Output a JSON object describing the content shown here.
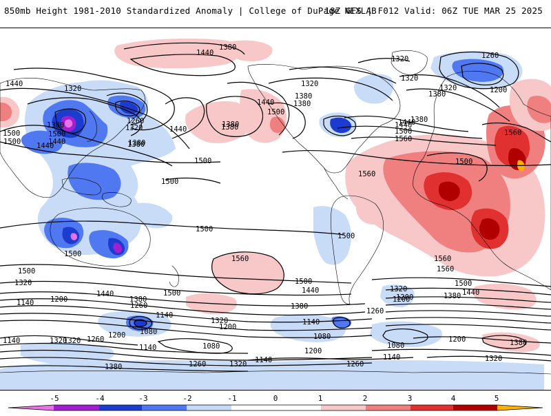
{
  "header": {
    "title": "850mb Height 1981-2010 Standardized Anomaly | College of DuPage NEXLAB",
    "run_info": "18Z GFS | F012 Valid: 06Z TUE MAR 25 2025"
  },
  "colors": {
    "neg5": "#e870e8",
    "neg4": "#a020d0",
    "neg3": "#1c3cd0",
    "neg2": "#5078f0",
    "neg1": "#c8dcf8",
    "zero": "#ffffff",
    "pos1": "#f8c8c8",
    "pos2": "#f08080",
    "pos3": "#e03030",
    "pos4": "#b00000",
    "pos5": "#ffb000",
    "contour": "#000000",
    "coast": "#000000"
  },
  "colorbar": {
    "ticks": [
      "-5",
      "-4",
      "-3",
      "-2",
      "-1",
      "0",
      "1",
      "2",
      "3",
      "4",
      "5"
    ]
  },
  "contour_labels": [
    {
      "id": "l1",
      "text": "1380"
    },
    {
      "id": "l2",
      "text": "1440"
    },
    {
      "id": "l3",
      "text": "1320"
    },
    {
      "id": "l4",
      "text": "1260"
    },
    {
      "id": "l5",
      "text": "1440"
    },
    {
      "id": "l6",
      "text": "1320"
    },
    {
      "id": "l7",
      "text": "1200"
    },
    {
      "id": "l8",
      "text": "1380"
    },
    {
      "id": "l9",
      "text": "1440"
    },
    {
      "id": "l10",
      "text": "1320"
    },
    {
      "id": "l11",
      "text": "1260"
    },
    {
      "id": "l12",
      "text": "1320"
    },
    {
      "id": "l13",
      "text": "1380"
    },
    {
      "id": "l14",
      "text": "1440"
    },
    {
      "id": "l15",
      "text": "1500"
    },
    {
      "id": "l16",
      "text": "1380"
    },
    {
      "id": "l17",
      "text": "1500"
    },
    {
      "id": "l18",
      "text": "1440"
    },
    {
      "id": "l19",
      "text": "1380"
    },
    {
      "id": "l20",
      "text": "1320"
    },
    {
      "id": "l21",
      "text": "1440"
    },
    {
      "id": "l22",
      "text": "1500"
    },
    {
      "id": "l23",
      "text": "1560"
    },
    {
      "id": "l24",
      "text": "1380"
    },
    {
      "id": "l25",
      "text": "1560"
    },
    {
      "id": "l26",
      "text": "1560"
    },
    {
      "id": "l27",
      "text": "1500"
    },
    {
      "id": "l28",
      "text": "1500"
    },
    {
      "id": "l29",
      "text": "1500"
    },
    {
      "id": "l30",
      "text": "1500"
    },
    {
      "id": "l31",
      "text": "1500"
    },
    {
      "id": "l32",
      "text": "1500"
    },
    {
      "id": "l33",
      "text": "1500"
    },
    {
      "id": "l34",
      "text": "1560"
    },
    {
      "id": "l35",
      "text": "1500"
    },
    {
      "id": "l36",
      "text": "1440"
    },
    {
      "id": "l37",
      "text": "1380"
    },
    {
      "id": "l38",
      "text": "1560"
    },
    {
      "id": "l39",
      "text": "1500"
    },
    {
      "id": "l40",
      "text": "1380"
    },
    {
      "id": "l41",
      "text": "1440"
    },
    {
      "id": "l42",
      "text": "1320"
    },
    {
      "id": "l43",
      "text": "1140"
    },
    {
      "id": "l44",
      "text": "1200"
    },
    {
      "id": "l45",
      "text": "1440"
    },
    {
      "id": "l46",
      "text": "1500"
    },
    {
      "id": "l47",
      "text": "1380"
    },
    {
      "id": "l48",
      "text": "1260"
    },
    {
      "id": "l49",
      "text": "1320"
    },
    {
      "id": "l50",
      "text": "1200"
    },
    {
      "id": "l51",
      "text": "1140"
    },
    {
      "id": "l52",
      "text": "1080"
    },
    {
      "id": "l53",
      "text": "1140"
    },
    {
      "id": "l54",
      "text": "1260"
    },
    {
      "id": "l55",
      "text": "1200"
    },
    {
      "id": "l56",
      "text": "1320"
    },
    {
      "id": "l57",
      "text": "1200"
    },
    {
      "id": "l58",
      "text": "1080"
    },
    {
      "id": "l59",
      "text": "1080"
    },
    {
      "id": "l60",
      "text": "1200"
    },
    {
      "id": "l61",
      "text": "1140"
    },
    {
      "id": "l62",
      "text": "1380"
    },
    {
      "id": "l63",
      "text": "1260"
    },
    {
      "id": "l64",
      "text": "1320"
    },
    {
      "id": "l65",
      "text": "1140"
    },
    {
      "id": "l66",
      "text": "1260"
    },
    {
      "id": "l67",
      "text": "1200"
    },
    {
      "id": "l68",
      "text": "1320"
    },
    {
      "id": "l69",
      "text": "1380"
    },
    {
      "id": "l70",
      "text": "1320"
    },
    {
      "id": "l71",
      "text": "1260"
    },
    {
      "id": "l72",
      "text": "1200"
    },
    {
      "id": "l73",
      "text": "1140"
    },
    {
      "id": "l74",
      "text": "1080"
    },
    {
      "id": "l75",
      "text": "1320"
    },
    {
      "id": "l76",
      "text": "1140"
    },
    {
      "id": "l77",
      "text": "1380"
    },
    {
      "id": "l78",
      "text": "1320"
    },
    {
      "id": "l79",
      "text": "1380"
    },
    {
      "id": "l80",
      "text": "1440"
    },
    {
      "id": "l81",
      "text": "1500"
    },
    {
      "id": "l82",
      "text": "1560"
    },
    {
      "id": "l83",
      "text": "1500"
    },
    {
      "id": "l84",
      "text": "1440"
    },
    {
      "id": "l85",
      "text": "1380"
    },
    {
      "id": "l86",
      "text": "1380"
    }
  ]
}
